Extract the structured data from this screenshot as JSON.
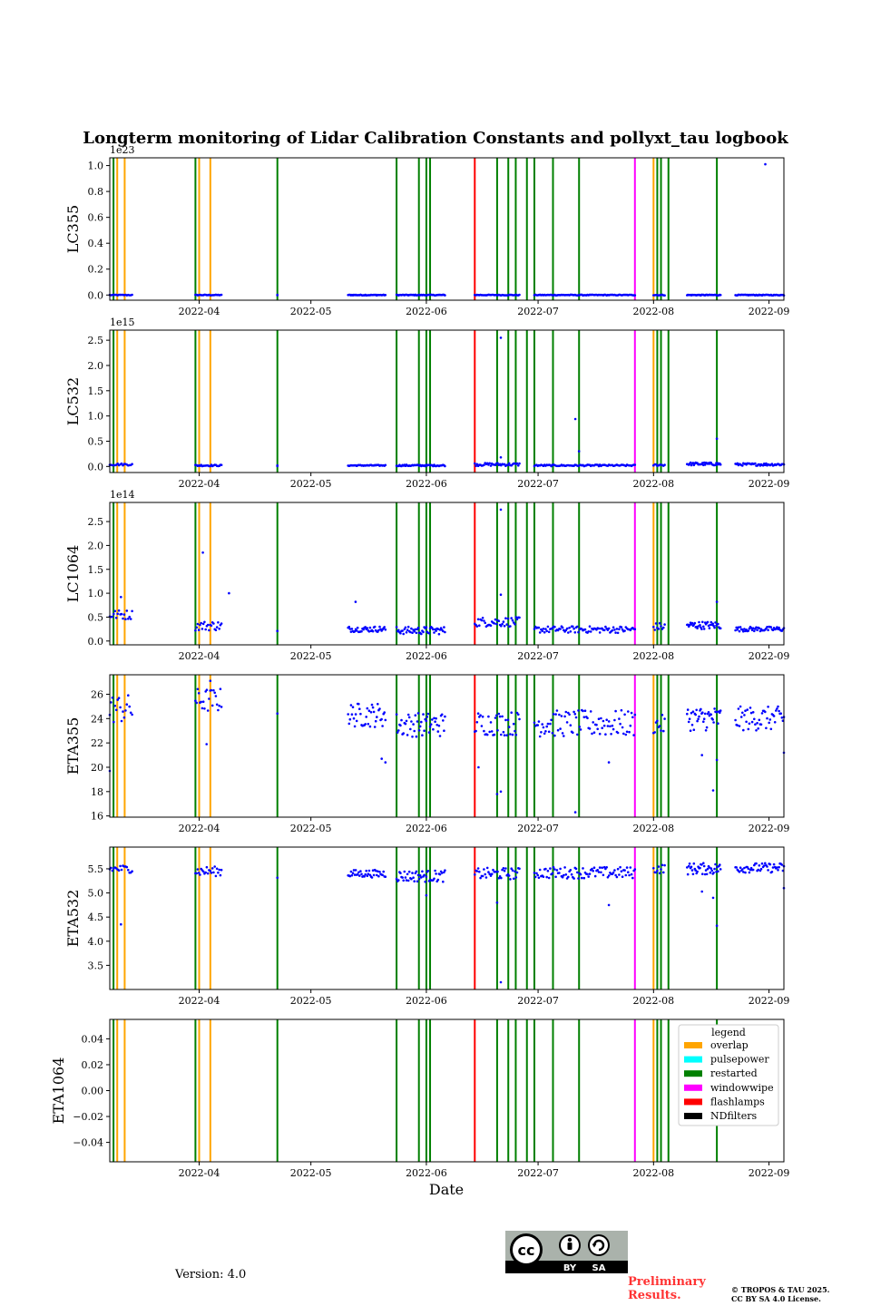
{
  "figure": {
    "title": "Longterm monitoring of Lidar Calibration Constants and pollyxt_tau logbook",
    "xlabel": "Date",
    "version_text": "Version: 4.0",
    "preliminary_line1": "Preliminary",
    "preliminary_line2": "Results.",
    "copyright_line1": "© TROPOS & TAU 2025.",
    "copyright_line2": "CC BY SA 4.0 License.",
    "license_badge": {
      "cc": "cc",
      "by": "BY",
      "sa": "SA"
    }
  },
  "colors": {
    "points": "#0000ff",
    "overlap": "#ffa500",
    "pulsepower": "#00ffff",
    "restarted": "#008000",
    "windowwipe": "#ff00ff",
    "flashlamps": "#ff0000",
    "NDfilters": "#000000"
  },
  "chart_data": {
    "type": "scatter",
    "x_range": [
      "2022-03-08",
      "2022-09-05"
    ],
    "x_ticks": [
      "2022-04",
      "2022-05",
      "2022-06",
      "2022-07",
      "2022-08",
      "2022-09"
    ],
    "events": [
      {
        "date": "2022-03-09",
        "type": "restarted"
      },
      {
        "date": "2022-03-10",
        "type": "overlap"
      },
      {
        "date": "2022-03-12",
        "type": "overlap"
      },
      {
        "date": "2022-03-31",
        "type": "restarted"
      },
      {
        "date": "2022-04-01",
        "type": "overlap"
      },
      {
        "date": "2022-04-04",
        "type": "overlap"
      },
      {
        "date": "2022-04-22",
        "type": "restarted"
      },
      {
        "date": "2022-05-24",
        "type": "restarted"
      },
      {
        "date": "2022-05-30",
        "type": "restarted"
      },
      {
        "date": "2022-06-01",
        "type": "restarted"
      },
      {
        "date": "2022-06-02",
        "type": "restarted"
      },
      {
        "date": "2022-06-14",
        "type": "flashlamps"
      },
      {
        "date": "2022-06-20",
        "type": "restarted"
      },
      {
        "date": "2022-06-23",
        "type": "restarted"
      },
      {
        "date": "2022-06-25",
        "type": "restarted"
      },
      {
        "date": "2022-06-28",
        "type": "restarted"
      },
      {
        "date": "2022-06-30",
        "type": "restarted"
      },
      {
        "date": "2022-07-05",
        "type": "restarted"
      },
      {
        "date": "2022-07-12",
        "type": "restarted"
      },
      {
        "date": "2022-07-27",
        "type": "windowwipe"
      },
      {
        "date": "2022-08-01",
        "type": "overlap"
      },
      {
        "date": "2022-08-02",
        "type": "restarted"
      },
      {
        "date": "2022-08-03",
        "type": "restarted"
      },
      {
        "date": "2022-08-05",
        "type": "restarted"
      },
      {
        "date": "2022-08-18",
        "type": "restarted"
      }
    ],
    "legend": {
      "title": "legend",
      "location": "upper-right of last panel",
      "entries": [
        "overlap",
        "pulsepower",
        "restarted",
        "windowwipe",
        "flashlamps",
        "NDfilters"
      ]
    },
    "panels": [
      {
        "id": "LC355",
        "ylabel": "LC355",
        "offset_label": "1e23",
        "ylim": [
          -0.04,
          1.06
        ],
        "yticks": [
          0.0,
          0.2,
          0.4,
          0.6,
          0.8,
          1.0
        ],
        "ytick_labels": [
          "0.0",
          "0.2",
          "0.4",
          "0.6",
          "0.8",
          "1.0"
        ],
        "clusters": [
          {
            "start": "2022-03-08",
            "end": "2022-03-14",
            "n": 18,
            "mean": 0.0,
            "spread": 0.003
          },
          {
            "start": "2022-03-31",
            "end": "2022-04-07",
            "n": 24,
            "mean": 0.0,
            "spread": 0.003
          },
          {
            "start": "2022-04-22",
            "end": "2022-04-22",
            "n": 2,
            "mean": 0.0,
            "spread": 0.003
          },
          {
            "start": "2022-05-11",
            "end": "2022-05-21",
            "n": 40,
            "mean": 0.0,
            "spread": 0.003
          },
          {
            "start": "2022-05-24",
            "end": "2022-06-06",
            "n": 50,
            "mean": 0.0,
            "spread": 0.003
          },
          {
            "start": "2022-06-14",
            "end": "2022-06-26",
            "n": 40,
            "mean": 0.0,
            "spread": 0.003
          },
          {
            "start": "2022-06-30",
            "end": "2022-07-27",
            "n": 90,
            "mean": 0.0,
            "spread": 0.003
          },
          {
            "start": "2022-08-01",
            "end": "2022-08-04",
            "n": 10,
            "mean": 0.0,
            "spread": 0.003
          },
          {
            "start": "2022-08-10",
            "end": "2022-08-19",
            "n": 40,
            "mean": 0.0,
            "spread": 0.003
          },
          {
            "start": "2022-08-23",
            "end": "2022-09-05",
            "n": 50,
            "mean": 0.0,
            "spread": 0.003
          }
        ],
        "outliers": [
          {
            "date": "2022-08-31",
            "value": 1.01
          }
        ]
      },
      {
        "id": "LC532",
        "ylabel": "LC532",
        "offset_label": "1e15",
        "ylim": [
          -0.12,
          2.7
        ],
        "yticks": [
          0.0,
          0.5,
          1.0,
          1.5,
          2.0,
          2.5
        ],
        "ytick_labels": [
          "0.0",
          "0.5",
          "1.0",
          "1.5",
          "2.0",
          "2.5"
        ],
        "clusters": [
          {
            "start": "2022-03-08",
            "end": "2022-03-14",
            "n": 18,
            "mean": 0.04,
            "spread": 0.02
          },
          {
            "start": "2022-03-31",
            "end": "2022-04-07",
            "n": 24,
            "mean": 0.02,
            "spread": 0.015
          },
          {
            "start": "2022-04-22",
            "end": "2022-04-22",
            "n": 2,
            "mean": 0.01,
            "spread": 0.01
          },
          {
            "start": "2022-05-11",
            "end": "2022-05-21",
            "n": 40,
            "mean": 0.02,
            "spread": 0.01
          },
          {
            "start": "2022-05-24",
            "end": "2022-06-06",
            "n": 50,
            "mean": 0.02,
            "spread": 0.015
          },
          {
            "start": "2022-06-14",
            "end": "2022-06-26",
            "n": 40,
            "mean": 0.04,
            "spread": 0.03
          },
          {
            "start": "2022-06-30",
            "end": "2022-07-27",
            "n": 90,
            "mean": 0.02,
            "spread": 0.015
          },
          {
            "start": "2022-08-01",
            "end": "2022-08-04",
            "n": 10,
            "mean": 0.03,
            "spread": 0.02
          },
          {
            "start": "2022-08-10",
            "end": "2022-08-19",
            "n": 40,
            "mean": 0.05,
            "spread": 0.03
          },
          {
            "start": "2022-08-23",
            "end": "2022-09-05",
            "n": 50,
            "mean": 0.04,
            "spread": 0.025
          }
        ],
        "outliers": [
          {
            "date": "2022-06-21",
            "value": 2.55
          },
          {
            "date": "2022-07-11",
            "value": 0.94
          },
          {
            "date": "2022-07-12",
            "value": 0.3
          },
          {
            "date": "2022-08-18",
            "value": 0.55
          },
          {
            "date": "2022-06-21",
            "value": 0.18
          }
        ]
      },
      {
        "id": "LC1064",
        "ylabel": "LC1064",
        "offset_label": "1e14",
        "ylim": [
          -0.08,
          2.9
        ],
        "yticks": [
          0.0,
          0.5,
          1.0,
          1.5,
          2.0,
          2.5
        ],
        "ytick_labels": [
          "0.0",
          "0.5",
          "1.0",
          "1.5",
          "2.0",
          "2.5"
        ],
        "clusters": [
          {
            "start": "2022-03-08",
            "end": "2022-03-14",
            "n": 18,
            "mean": 0.55,
            "spread": 0.1
          },
          {
            "start": "2022-03-31",
            "end": "2022-04-07",
            "n": 24,
            "mean": 0.32,
            "spread": 0.1
          },
          {
            "start": "2022-04-22",
            "end": "2022-04-22",
            "n": 2,
            "mean": 0.2,
            "spread": 0.03
          },
          {
            "start": "2022-05-11",
            "end": "2022-05-21",
            "n": 40,
            "mean": 0.25,
            "spread": 0.06
          },
          {
            "start": "2022-05-24",
            "end": "2022-06-06",
            "n": 50,
            "mean": 0.22,
            "spread": 0.08
          },
          {
            "start": "2022-06-14",
            "end": "2022-06-26",
            "n": 40,
            "mean": 0.4,
            "spread": 0.1
          },
          {
            "start": "2022-06-30",
            "end": "2022-07-27",
            "n": 90,
            "mean": 0.24,
            "spread": 0.07
          },
          {
            "start": "2022-08-01",
            "end": "2022-08-04",
            "n": 10,
            "mean": 0.3,
            "spread": 0.08
          },
          {
            "start": "2022-08-10",
            "end": "2022-08-19",
            "n": 40,
            "mean": 0.33,
            "spread": 0.08
          },
          {
            "start": "2022-08-23",
            "end": "2022-09-05",
            "n": 50,
            "mean": 0.25,
            "spread": 0.05
          }
        ],
        "outliers": [
          {
            "date": "2022-04-02",
            "value": 1.85
          },
          {
            "date": "2022-04-09",
            "value": 1.0
          },
          {
            "date": "2022-05-13",
            "value": 0.82
          },
          {
            "date": "2022-06-21",
            "value": 2.75
          },
          {
            "date": "2022-06-21",
            "value": 0.97
          },
          {
            "date": "2022-08-18",
            "value": 0.82
          },
          {
            "date": "2022-03-11",
            "value": 0.92
          }
        ]
      },
      {
        "id": "ETA355",
        "ylabel": "ETA355",
        "offset_label": "",
        "ylim": [
          15.9,
          27.6
        ],
        "yticks": [
          16,
          18,
          20,
          22,
          24,
          26
        ],
        "ytick_labels": [
          "16",
          "18",
          "20",
          "22",
          "24",
          "26"
        ],
        "clusters": [
          {
            "start": "2022-03-08",
            "end": "2022-03-14",
            "n": 18,
            "mean": 24.8,
            "spread": 1.2
          },
          {
            "start": "2022-03-31",
            "end": "2022-04-07",
            "n": 24,
            "mean": 25.5,
            "spread": 1.0
          },
          {
            "start": "2022-04-22",
            "end": "2022-04-22",
            "n": 1,
            "mean": 24.5,
            "spread": 0.1
          },
          {
            "start": "2022-05-11",
            "end": "2022-05-21",
            "n": 40,
            "mean": 24.3,
            "spread": 1.0
          },
          {
            "start": "2022-05-24",
            "end": "2022-06-06",
            "n": 50,
            "mean": 23.5,
            "spread": 1.0
          },
          {
            "start": "2022-06-14",
            "end": "2022-06-26",
            "n": 40,
            "mean": 23.6,
            "spread": 1.0
          },
          {
            "start": "2022-06-30",
            "end": "2022-07-27",
            "n": 90,
            "mean": 23.6,
            "spread": 1.1
          },
          {
            "start": "2022-08-01",
            "end": "2022-08-04",
            "n": 10,
            "mean": 23.5,
            "spread": 0.8
          },
          {
            "start": "2022-08-10",
            "end": "2022-08-19",
            "n": 40,
            "mean": 24.0,
            "spread": 1.0
          },
          {
            "start": "2022-08-23",
            "end": "2022-09-05",
            "n": 50,
            "mean": 24.0,
            "spread": 1.0
          }
        ],
        "outliers": [
          {
            "date": "2022-03-08",
            "value": 19.7
          },
          {
            "date": "2022-04-03",
            "value": 21.9
          },
          {
            "date": "2022-05-20",
            "value": 20.7
          },
          {
            "date": "2022-05-21",
            "value": 20.4
          },
          {
            "date": "2022-06-15",
            "value": 20.0
          },
          {
            "date": "2022-06-20",
            "value": 17.8
          },
          {
            "date": "2022-06-21",
            "value": 18.0
          },
          {
            "date": "2022-07-11",
            "value": 16.3
          },
          {
            "date": "2022-07-20",
            "value": 20.4
          },
          {
            "date": "2022-08-14",
            "value": 21.0
          },
          {
            "date": "2022-08-17",
            "value": 18.1
          },
          {
            "date": "2022-08-18",
            "value": 20.6
          },
          {
            "date": "2022-09-05",
            "value": 21.2
          },
          {
            "date": "2022-04-04",
            "value": 27.1
          }
        ]
      },
      {
        "id": "ETA532",
        "ylabel": "ETA532",
        "offset_label": "",
        "ylim": [
          3.0,
          5.95
        ],
        "yticks": [
          3.5,
          4.0,
          4.5,
          5.0,
          5.5
        ],
        "ytick_labels": [
          "3.5",
          "4.0",
          "4.5",
          "5.0",
          "5.5"
        ],
        "clusters": [
          {
            "start": "2022-03-08",
            "end": "2022-03-14",
            "n": 18,
            "mean": 5.5,
            "spread": 0.08
          },
          {
            "start": "2022-03-31",
            "end": "2022-04-07",
            "n": 24,
            "mean": 5.45,
            "spread": 0.1
          },
          {
            "start": "2022-04-22",
            "end": "2022-04-22",
            "n": 1,
            "mean": 5.32,
            "spread": 0.02
          },
          {
            "start": "2022-05-11",
            "end": "2022-05-21",
            "n": 40,
            "mean": 5.4,
            "spread": 0.08
          },
          {
            "start": "2022-05-24",
            "end": "2022-06-06",
            "n": 50,
            "mean": 5.35,
            "spread": 0.12
          },
          {
            "start": "2022-06-14",
            "end": "2022-06-26",
            "n": 40,
            "mean": 5.4,
            "spread": 0.12
          },
          {
            "start": "2022-06-30",
            "end": "2022-07-27",
            "n": 90,
            "mean": 5.42,
            "spread": 0.12
          },
          {
            "start": "2022-08-01",
            "end": "2022-08-04",
            "n": 10,
            "mean": 5.5,
            "spread": 0.1
          },
          {
            "start": "2022-08-10",
            "end": "2022-08-19",
            "n": 40,
            "mean": 5.5,
            "spread": 0.12
          },
          {
            "start": "2022-08-23",
            "end": "2022-09-05",
            "n": 50,
            "mean": 5.52,
            "spread": 0.1
          }
        ],
        "outliers": [
          {
            "date": "2022-03-11",
            "value": 4.35
          },
          {
            "date": "2022-06-20",
            "value": 4.8
          },
          {
            "date": "2022-06-21",
            "value": 3.15
          },
          {
            "date": "2022-07-20",
            "value": 4.75
          },
          {
            "date": "2022-08-14",
            "value": 5.03
          },
          {
            "date": "2022-08-17",
            "value": 4.9
          },
          {
            "date": "2022-08-18",
            "value": 4.32
          },
          {
            "date": "2022-09-05",
            "value": 5.1
          },
          {
            "date": "2022-06-01",
            "value": 4.95
          }
        ]
      },
      {
        "id": "ETA1064",
        "ylabel": "ETA1064",
        "offset_label": "",
        "ylim": [
          -0.055,
          0.055
        ],
        "yticks": [
          -0.04,
          -0.02,
          0.0,
          0.02,
          0.04
        ],
        "ytick_labels": [
          "−0.04",
          "−0.02",
          "0.00",
          "0.02",
          "0.04"
        ],
        "clusters": [],
        "outliers": []
      }
    ]
  }
}
